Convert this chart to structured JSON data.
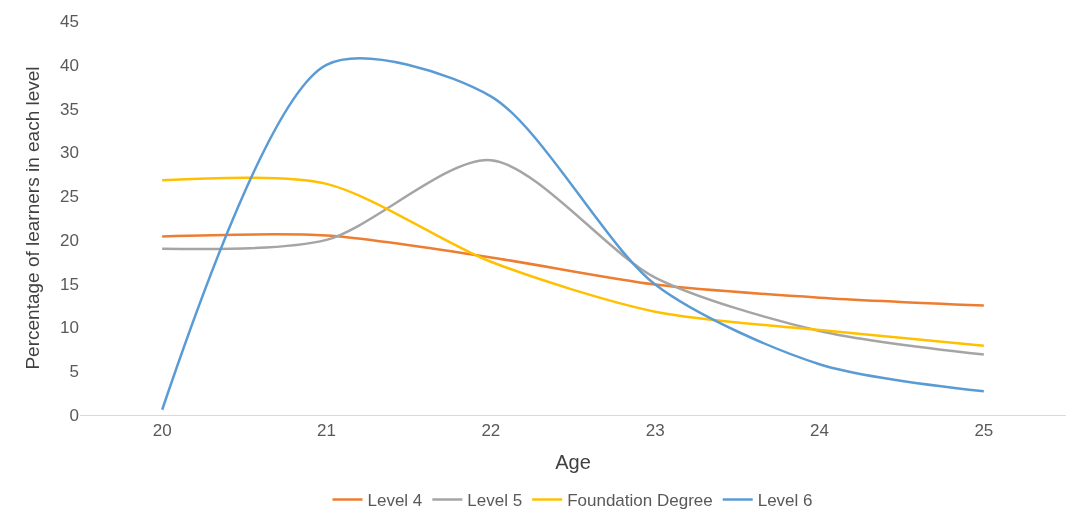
{
  "chart_data": {
    "type": "line",
    "xlabel": "Age",
    "ylabel": "Percentage of learners in each level",
    "categories": [
      "20",
      "21",
      "22",
      "23",
      "24",
      "25"
    ],
    "series": [
      {
        "name": "Level 4",
        "color": "#ed7d31",
        "values": [
          20.4,
          20.5,
          18,
          14.9,
          13.4,
          12.5
        ]
      },
      {
        "name": "Level 5",
        "color": "#a5a5a5",
        "values": [
          19,
          20,
          29.1,
          15.7,
          9.6,
          6.9
        ]
      },
      {
        "name": "Foundation Degree",
        "color": "#ffc000",
        "values": [
          26.8,
          26.4,
          17.5,
          11.8,
          9.7,
          7.9
        ]
      },
      {
        "name": "Level 6",
        "color": "#5b9bd5",
        "values": [
          0.6,
          40,
          36.4,
          14.9,
          5.8,
          2.7
        ]
      }
    ],
    "ylim": [
      0,
      45
    ],
    "yticks": [
      0,
      5,
      10,
      15,
      20,
      25,
      30,
      35,
      40,
      45
    ],
    "grid": false,
    "legend": "bottom",
    "marker": "none",
    "line_style": "solid"
  }
}
